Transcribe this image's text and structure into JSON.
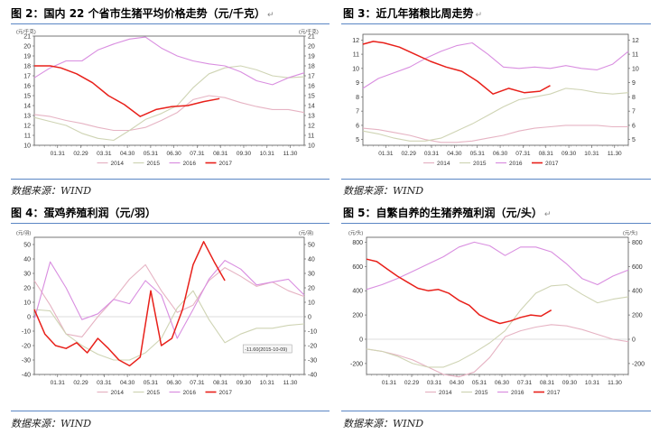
{
  "figures": [
    {
      "title": "图 2：国内 22 个省市生猪平均价格走势（元/千克）",
      "source": "数据来源：WIND"
    },
    {
      "title": "图 3：近几年猪粮比周走势",
      "source": "数据来源：WIND"
    },
    {
      "title": "图 4：蛋鸡养殖利润（元/羽）",
      "source": "数据来源：WIND"
    },
    {
      "title": "图 5：自繁自养的生猪养殖利润（元/头）",
      "source": "数据来源：WIND"
    }
  ],
  "return_mark": "↵",
  "colors": {
    "s2014": "#e6b3c3",
    "s2015": "#cfd4b4",
    "s2016": "#d98ee0",
    "s2017": "#e8201a",
    "rule": "#5a86c4"
  },
  "chart_data": [
    {
      "type": "line",
      "unit_left": "(元/千克)",
      "unit_right": "(元/千克)",
      "ylim": [
        10,
        21
      ],
      "yticks": [
        10,
        11,
        12,
        13,
        14,
        15,
        16,
        17,
        18,
        19,
        20,
        21
      ],
      "xticks": [
        "01.31",
        "02.29",
        "03.31",
        "04.30",
        "05.31",
        "06.30",
        "07.31",
        "08.31",
        "09.30",
        "10.31",
        "11.30"
      ],
      "n": 52,
      "series": [
        {
          "name": "2014",
          "x": [
            0,
            3,
            6,
            9,
            12,
            15,
            18,
            21,
            24,
            27,
            30,
            33,
            36,
            39,
            42,
            45,
            48,
            51
          ],
          "values": [
            13.1,
            12.9,
            12.5,
            12.2,
            11.8,
            11.5,
            11.5,
            11.8,
            12.5,
            13.3,
            14.6,
            15.0,
            14.8,
            14.3,
            13.9,
            13.6,
            13.6,
            13.3
          ]
        },
        {
          "name": "2015",
          "x": [
            0,
            3,
            6,
            9,
            12,
            15,
            18,
            21,
            24,
            27,
            30,
            33,
            36,
            39,
            42,
            45,
            48,
            51
          ],
          "values": [
            12.8,
            12.4,
            12.0,
            11.2,
            10.7,
            10.5,
            11.5,
            12.6,
            13.2,
            14.0,
            15.8,
            17.2,
            17.8,
            18.0,
            17.6,
            17.0,
            16.8,
            16.9
          ]
        },
        {
          "name": "2016",
          "x": [
            0,
            3,
            6,
            9,
            12,
            15,
            18,
            21,
            24,
            27,
            30,
            33,
            36,
            39,
            42,
            45,
            48,
            51
          ],
          "values": [
            16.8,
            17.8,
            18.5,
            18.5,
            19.6,
            20.2,
            20.7,
            20.9,
            19.8,
            19.0,
            18.5,
            18.2,
            18.0,
            17.4,
            16.5,
            16.1,
            16.8,
            17.3
          ]
        },
        {
          "name": "2017",
          "x": [
            0,
            3,
            5,
            8,
            11,
            14,
            17,
            20,
            23,
            26,
            29,
            32,
            35
          ],
          "values": [
            18.0,
            18.0,
            17.8,
            17.2,
            16.3,
            15.0,
            14.1,
            12.9,
            13.6,
            13.9,
            14.0,
            14.4,
            14.7
          ]
        }
      ]
    },
    {
      "type": "line",
      "ylim": [
        4.6,
        12.4
      ],
      "yticks": [
        5,
        6,
        7,
        8,
        9,
        10,
        11,
        12
      ],
      "xticks": [
        "01.31",
        "02.29",
        "03.31",
        "04.30",
        "05.31",
        "06.30",
        "07.31",
        "08.31",
        "09.30",
        "10.31",
        "11.30"
      ],
      "n": 52,
      "series": [
        {
          "name": "2014",
          "x": [
            0,
            3,
            6,
            9,
            12,
            15,
            18,
            21,
            24,
            27,
            30,
            33,
            36,
            39,
            42,
            45,
            48,
            51
          ],
          "values": [
            5.8,
            5.7,
            5.5,
            5.3,
            5.0,
            4.8,
            4.8,
            4.9,
            5.1,
            5.3,
            5.6,
            5.8,
            5.9,
            6.0,
            6.0,
            6.0,
            5.9,
            5.9
          ]
        },
        {
          "name": "2015",
          "x": [
            0,
            3,
            6,
            9,
            12,
            15,
            18,
            21,
            24,
            27,
            30,
            33,
            36,
            39,
            42,
            45,
            48,
            51
          ],
          "values": [
            5.6,
            5.4,
            5.1,
            4.9,
            4.9,
            5.1,
            5.6,
            6.1,
            6.7,
            7.3,
            7.8,
            8.0,
            8.2,
            8.6,
            8.5,
            8.3,
            8.2,
            8.3
          ]
        },
        {
          "name": "2016",
          "x": [
            0,
            3,
            6,
            9,
            12,
            15,
            18,
            21,
            24,
            27,
            30,
            33,
            36,
            39,
            42,
            45,
            48,
            51
          ],
          "values": [
            8.6,
            9.3,
            9.7,
            10.1,
            10.7,
            11.2,
            11.6,
            11.8,
            11.0,
            10.1,
            10.0,
            10.1,
            10.0,
            10.2,
            10.0,
            9.9,
            10.3,
            11.2
          ]
        },
        {
          "name": "2017",
          "x": [
            0,
            2,
            4,
            7,
            10,
            13,
            16,
            19,
            22,
            25,
            28,
            31,
            34,
            36
          ],
          "values": [
            11.7,
            11.9,
            11.8,
            11.5,
            11.0,
            10.5,
            10.1,
            9.8,
            9.1,
            8.2,
            8.6,
            8.3,
            8.4,
            8.8
          ]
        }
      ]
    },
    {
      "type": "line",
      "unit_left": "(元/羽)",
      "unit_right": "(元/羽)",
      "ylim": [
        -40,
        55
      ],
      "yticks": [
        -40,
        -30,
        -20,
        -10,
        0,
        10,
        20,
        30,
        40,
        50
      ],
      "xticks": [
        "01.31",
        "02.29",
        "03.31",
        "04.30",
        "05.31",
        "06.30",
        "07.31",
        "08.31",
        "09.30",
        "10.31",
        "11.30"
      ],
      "n": 52,
      "annotation": "-11.60(2015-10-09)",
      "series": [
        {
          "name": "2014",
          "x": [
            0,
            3,
            6,
            9,
            12,
            15,
            18,
            21,
            24,
            27,
            30,
            33,
            36,
            39,
            42,
            45,
            48,
            51
          ],
          "values": [
            25,
            8,
            -12,
            -14,
            0,
            12,
            26,
            36,
            18,
            3,
            8,
            25,
            34,
            28,
            21,
            24,
            18,
            14
          ]
        },
        {
          "name": "2015",
          "x": [
            0,
            3,
            6,
            9,
            12,
            15,
            18,
            21,
            24,
            27,
            30,
            33,
            36,
            39,
            42,
            45,
            48,
            51
          ],
          "values": [
            5,
            4,
            -12,
            -20,
            -26,
            -30,
            -30,
            -25,
            -15,
            6,
            18,
            -2,
            -18,
            -12,
            -8,
            -8,
            -6,
            -5
          ]
        },
        {
          "name": "2016",
          "x": [
            0,
            3,
            6,
            9,
            12,
            15,
            18,
            21,
            24,
            27,
            30,
            33,
            36,
            39,
            42,
            45,
            48,
            51
          ],
          "values": [
            -2,
            38,
            20,
            -2,
            2,
            12,
            9,
            25,
            15,
            -15,
            5,
            26,
            39,
            33,
            22,
            24,
            26,
            15
          ]
        },
        {
          "name": "2017",
          "x": [
            0,
            2,
            4,
            6,
            8,
            10,
            12,
            14,
            16,
            18,
            20,
            22,
            24,
            26,
            28,
            30,
            32,
            34,
            36
          ],
          "values": [
            5,
            -12,
            -20,
            -22,
            -18,
            -25,
            -15,
            -22,
            -30,
            -34,
            -28,
            18,
            -20,
            -15,
            5,
            36,
            52,
            38,
            25
          ]
        }
      ]
    },
    {
      "type": "line",
      "unit_left": "(元/头)",
      "unit_right": "(元/头)",
      "ylim": [
        -290,
        840
      ],
      "yticks": [
        -200,
        0,
        200,
        400,
        600,
        800
      ],
      "xticks": [
        "01.31",
        "02.29",
        "03.31",
        "04.30",
        "05.31",
        "06.30",
        "07.31",
        "08.31",
        "09.30",
        "10.31",
        "11.30"
      ],
      "n": 52,
      "series": [
        {
          "name": "2014",
          "x": [
            0,
            3,
            6,
            9,
            12,
            15,
            18,
            21,
            24,
            27,
            30,
            33,
            36,
            39,
            42,
            45,
            48,
            51
          ],
          "values": [
            -80,
            -100,
            -130,
            -170,
            -230,
            -290,
            -310,
            -270,
            -150,
            20,
            70,
            100,
            120,
            110,
            80,
            40,
            0,
            -20
          ]
        },
        {
          "name": "2015",
          "x": [
            0,
            3,
            6,
            9,
            12,
            15,
            18,
            21,
            24,
            27,
            30,
            33,
            36,
            39,
            42,
            45,
            48,
            51
          ],
          "values": [
            -80,
            -100,
            -140,
            -200,
            -230,
            -230,
            -180,
            -110,
            -30,
            70,
            240,
            380,
            440,
            450,
            370,
            300,
            330,
            350
          ]
        },
        {
          "name": "2016",
          "x": [
            0,
            3,
            6,
            9,
            12,
            15,
            18,
            21,
            24,
            27,
            30,
            33,
            36,
            39,
            42,
            45,
            48,
            51
          ],
          "values": [
            410,
            450,
            500,
            560,
            620,
            680,
            760,
            800,
            770,
            690,
            760,
            760,
            720,
            620,
            500,
            450,
            520,
            570
          ]
        },
        {
          "name": "2017",
          "x": [
            0,
            2,
            4,
            6,
            8,
            10,
            12,
            14,
            16,
            18,
            20,
            22,
            24,
            26,
            28,
            30,
            32,
            34,
            36
          ],
          "values": [
            660,
            640,
            580,
            520,
            470,
            420,
            400,
            410,
            380,
            320,
            280,
            200,
            160,
            130,
            150,
            180,
            200,
            190,
            240
          ]
        }
      ]
    }
  ]
}
